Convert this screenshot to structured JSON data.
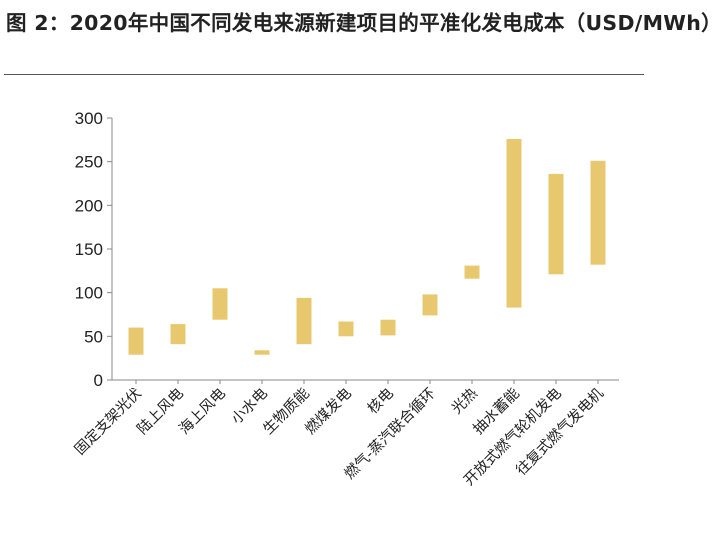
{
  "title": {
    "figure_no": "图 2：",
    "text": "2020年中国不同发电来源新建项目的平准化发电成本（USD/MWh）"
  },
  "chart_data": {
    "type": "bar",
    "subtype": "floating-range",
    "title": "2020年中国不同发电来源新建项目的平准化发电成本（USD/MWh）",
    "ylabel": "",
    "xlabel": "",
    "ylim": [
      0,
      300
    ],
    "yticks": [
      0,
      50,
      100,
      150,
      200,
      250,
      300
    ],
    "grid": false,
    "legend": "none",
    "bar_color": "#E8C86E",
    "categories": [
      "固定支架光伏",
      "陆上风电",
      "海上风电",
      "小水电",
      "生物质能",
      "燃煤发电",
      "核电",
      "燃气-蒸汽联合循环",
      "光热",
      "抽水蓄能",
      "开放式燃气轮机发电",
      "往复式燃气发电机"
    ],
    "low": [
      29,
      41,
      69,
      29,
      41,
      50,
      51,
      74,
      116,
      83,
      121,
      132
    ],
    "high": [
      60,
      64,
      105,
      34,
      94,
      67,
      69,
      98,
      131,
      276,
      236,
      251
    ]
  }
}
